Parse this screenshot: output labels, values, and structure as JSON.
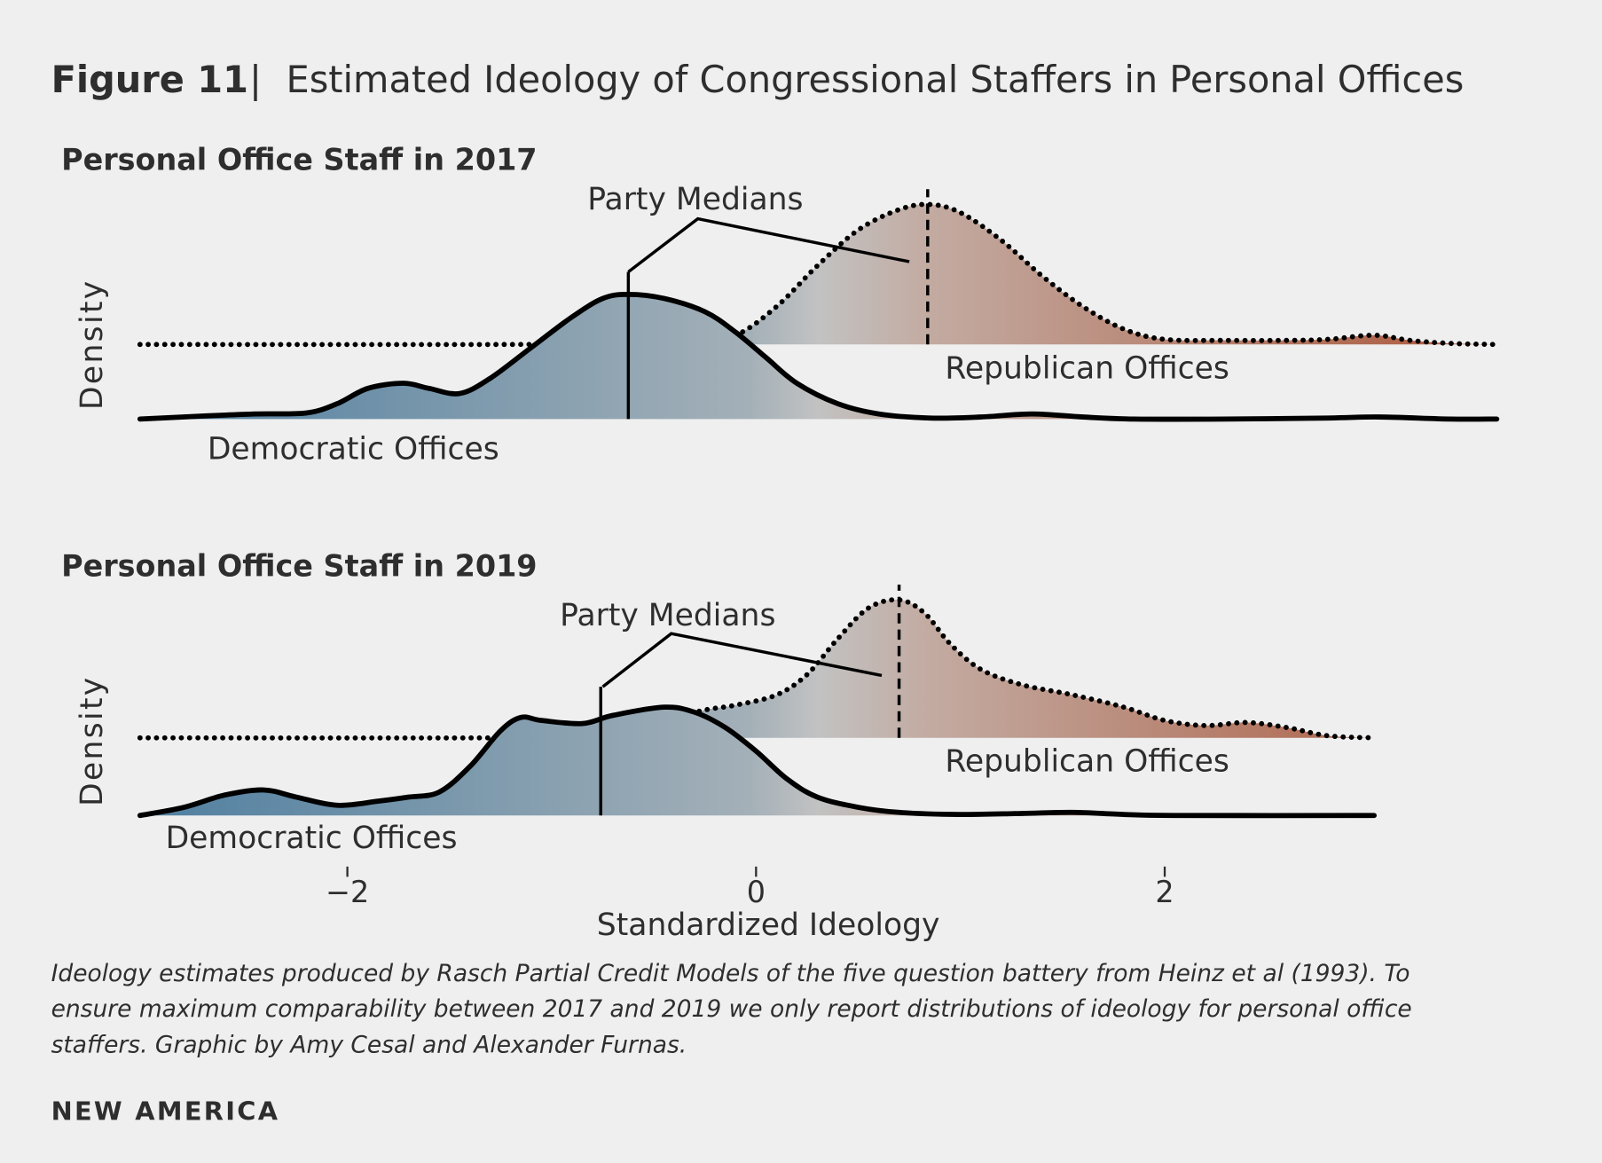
{
  "header": {
    "figure_label": "Figure 11",
    "separator": "|",
    "title": "Estimated Ideology of Congressional Staffers in Personal Offices"
  },
  "colors": {
    "background": "#efefef",
    "democratic": "#4f7fa0",
    "neutral": "#c2c2c2",
    "republican": "#b0573b",
    "text": "#2e2e2e"
  },
  "chart_data": [
    {
      "type": "area",
      "title": "Personal Office Staff in 2017",
      "xlabel": "",
      "ylabel": "Density",
      "xlim": [
        -3,
        3.6
      ],
      "grid": false,
      "annotation": "Party Medians",
      "series": [
        {
          "name": "Democratic Offices",
          "line": "solid",
          "median": -0.625,
          "points": [
            [
              -3.015,
              0
            ],
            [
              -2.7,
              0.015
            ],
            [
              -2.45,
              0.025
            ],
            [
              -2.2,
              0.03
            ],
            [
              -2.05,
              0.075
            ],
            [
              -1.9,
              0.15
            ],
            [
              -1.725,
              0.175
            ],
            [
              -1.6,
              0.15
            ],
            [
              -1.45,
              0.125
            ],
            [
              -1.3,
              0.2
            ],
            [
              -1.1,
              0.35
            ],
            [
              -0.9,
              0.5
            ],
            [
              -0.75,
              0.59
            ],
            [
              -0.625,
              0.61
            ],
            [
              -0.45,
              0.59
            ],
            [
              -0.25,
              0.525
            ],
            [
              -0.1,
              0.425
            ],
            [
              0.05,
              0.3
            ],
            [
              0.2,
              0.175
            ],
            [
              0.4,
              0.075
            ],
            [
              0.6,
              0.025
            ],
            [
              0.85,
              0.005
            ],
            [
              1.1,
              0.01
            ],
            [
              1.35,
              0.025
            ],
            [
              1.6,
              0.01
            ],
            [
              1.85,
              0
            ],
            [
              2.3,
              0
            ],
            [
              2.8,
              0.005
            ],
            [
              3.05,
              0.01
            ],
            [
              3.4,
              0
            ],
            [
              3.625,
              0
            ]
          ]
        },
        {
          "name": "Republican Offices",
          "line": "dotted",
          "median": 0.84,
          "points": [
            [
              -3.015,
              0
            ],
            [
              -1.2,
              0
            ],
            [
              -0.7,
              0.005
            ],
            [
              -0.3,
              0.02
            ],
            [
              -0.1,
              0.045
            ],
            [
              0.1,
              0.185
            ],
            [
              0.3,
              0.385
            ],
            [
              0.5,
              0.56
            ],
            [
              0.7,
              0.66
            ],
            [
              0.85,
              0.685
            ],
            [
              1.0,
              0.645
            ],
            [
              1.2,
              0.51
            ],
            [
              1.4,
              0.335
            ],
            [
              1.6,
              0.185
            ],
            [
              1.8,
              0.075
            ],
            [
              2.0,
              0.025
            ],
            [
              2.3,
              0.02
            ],
            [
              2.6,
              0.02
            ],
            [
              2.8,
              0.025
            ],
            [
              3.025,
              0.045
            ],
            [
              3.2,
              0.02
            ],
            [
              3.4,
              0.005
            ],
            [
              3.625,
              0
            ]
          ]
        }
      ]
    },
    {
      "type": "area",
      "title": "Personal Office Staff in 2019",
      "xlabel": "Standardized Ideology",
      "ylabel": "Density",
      "xlim": [
        -3,
        3.6
      ],
      "xticks": [
        "-2",
        "0",
        "2"
      ],
      "xtick_values": [
        -2,
        0,
        2
      ],
      "grid": false,
      "annotation": "Party Medians",
      "series": [
        {
          "name": "Democratic Offices",
          "line": "solid",
          "median": -0.76,
          "points": [
            [
              -3.015,
              0
            ],
            [
              -2.8,
              0.04
            ],
            [
              -2.6,
              0.1
            ],
            [
              -2.41,
              0.125
            ],
            [
              -2.25,
              0.09
            ],
            [
              -2.05,
              0.05
            ],
            [
              -1.85,
              0.07
            ],
            [
              -1.7,
              0.09
            ],
            [
              -1.55,
              0.115
            ],
            [
              -1.4,
              0.24
            ],
            [
              -1.25,
              0.415
            ],
            [
              -1.15,
              0.48
            ],
            [
              -1.05,
              0.465
            ],
            [
              -0.85,
              0.45
            ],
            [
              -0.7,
              0.49
            ],
            [
              -0.45,
              0.53
            ],
            [
              -0.3,
              0.505
            ],
            [
              -0.15,
              0.43
            ],
            [
              0,
              0.315
            ],
            [
              0.15,
              0.18
            ],
            [
              0.3,
              0.09
            ],
            [
              0.5,
              0.04
            ],
            [
              0.7,
              0.015
            ],
            [
              1.0,
              0.005
            ],
            [
              1.3,
              0.01
            ],
            [
              1.55,
              0.015
            ],
            [
              1.8,
              0.005
            ],
            [
              2.05,
              0
            ],
            [
              3.025,
              0
            ]
          ]
        },
        {
          "name": "Republican Offices",
          "line": "dotted",
          "median": 0.7,
          "points": [
            [
              -3.015,
              0
            ],
            [
              -1.3,
              0
            ],
            [
              -0.7,
              0.01
            ],
            [
              -0.3,
              0.125
            ],
            [
              -0.1,
              0.16
            ],
            [
              0.1,
              0.21
            ],
            [
              0.25,
              0.31
            ],
            [
              0.4,
              0.485
            ],
            [
              0.55,
              0.635
            ],
            [
              0.7,
              0.675
            ],
            [
              0.825,
              0.61
            ],
            [
              0.95,
              0.46
            ],
            [
              1.1,
              0.335
            ],
            [
              1.3,
              0.26
            ],
            [
              1.55,
              0.21
            ],
            [
              1.8,
              0.15
            ],
            [
              2.0,
              0.085
            ],
            [
              2.2,
              0.06
            ],
            [
              2.4,
              0.075
            ],
            [
              2.6,
              0.05
            ],
            [
              2.8,
              0.01
            ],
            [
              3.025,
              0
            ]
          ]
        }
      ]
    }
  ],
  "footer": {
    "note_lines": [
      "Ideology estimates produced by Rasch Partial Credit Models of the five question battery from Heinz et al (1993). To",
      "ensure maximum comparability between 2017 and 2019 we only report distributions of ideology for personal office",
      "staffers. Graphic by Amy Cesal and Alexander Furnas."
    ],
    "brand": "NEW AMERICA"
  }
}
